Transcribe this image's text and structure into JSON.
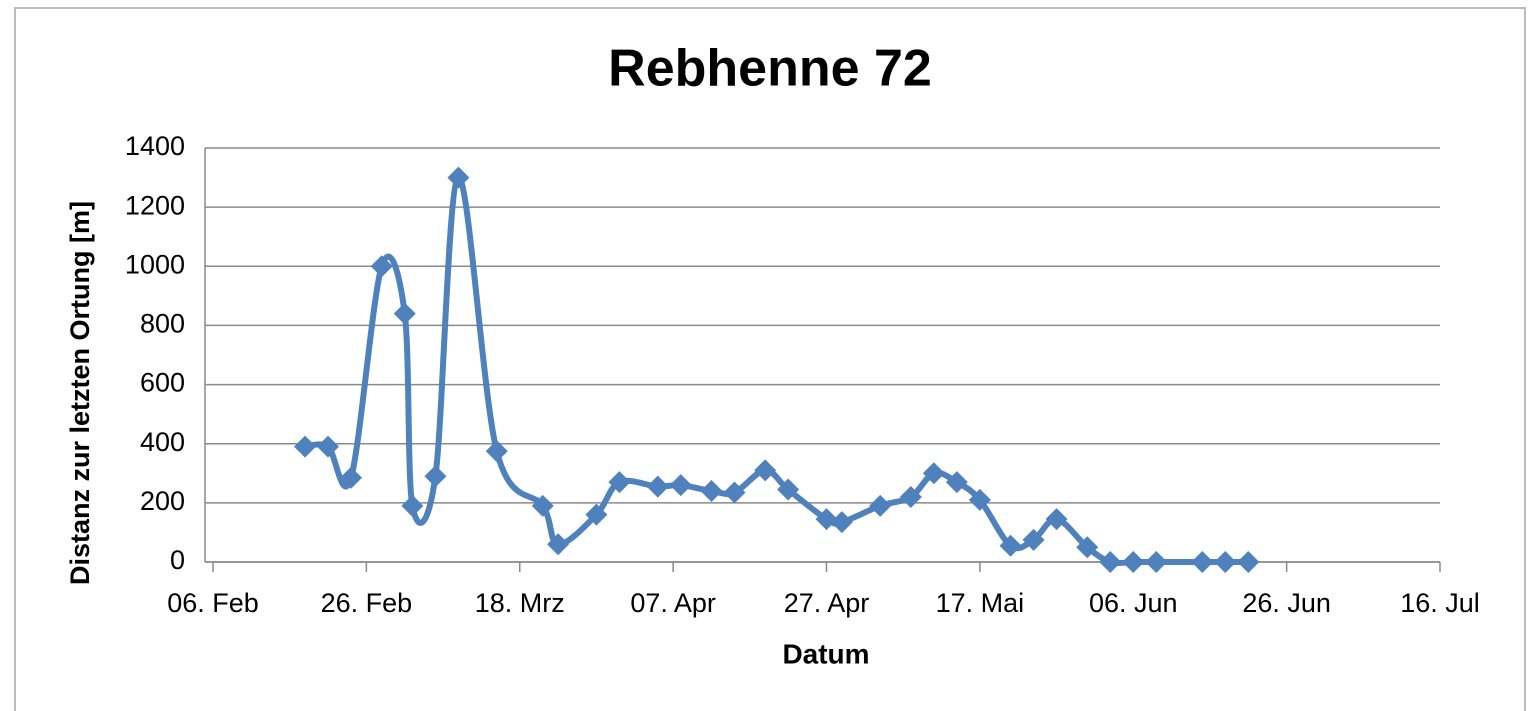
{
  "chart_data": {
    "type": "line",
    "title": "Rebhenne 72",
    "xlabel": "Datum",
    "ylabel": "Distanz zur letzten Ortung [m]",
    "x": [
      "18. Feb",
      "21. Feb",
      "24. Feb",
      "28. Feb",
      "03. Mrz",
      "04. Mrz",
      "07. Mrz",
      "10. Mrz",
      "15. Mrz",
      "21. Mrz",
      "23. Mrz",
      "28. Mrz",
      "31. Mrz",
      "05. Apr",
      "08. Apr",
      "12. Apr",
      "15. Apr",
      "19. Apr",
      "22. Apr",
      "27. Apr",
      "29. Apr",
      "04. Mai",
      "08. Mai",
      "11. Mai",
      "14. Mai",
      "17. Mai",
      "21. Mai",
      "24. Mai",
      "27. Mai",
      "31. Mai",
      "03. Jun",
      "06. Jun",
      "09. Jun",
      "15. Jun",
      "18. Jun",
      "21. Jun"
    ],
    "series": [
      {
        "name": "Distanz",
        "color": "#4f81bd",
        "values": [
          390,
          390,
          285,
          1000,
          840,
          190,
          290,
          1300,
          375,
          190,
          60,
          160,
          270,
          255,
          260,
          240,
          235,
          310,
          245,
          145,
          135,
          190,
          220,
          300,
          270,
          210,
          55,
          75,
          145,
          50,
          0,
          0,
          0,
          0,
          0,
          0
        ]
      }
    ],
    "xlim": [
      "06. Feb",
      "16. Jul"
    ],
    "xticks": [
      "06. Feb",
      "26. Feb",
      "18. Mrz",
      "07. Apr",
      "27. Apr",
      "17. Mai",
      "06. Jun",
      "26. Jun",
      "16. Jul"
    ],
    "ylim": [
      0,
      1400
    ],
    "yticks": [
      0,
      200,
      400,
      600,
      800,
      1000,
      1200,
      1400
    ],
    "grid": true,
    "smooth": true
  }
}
